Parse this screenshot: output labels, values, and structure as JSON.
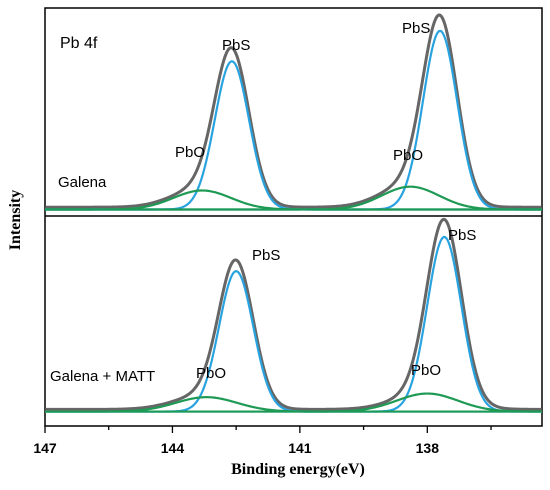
{
  "chart_data": {
    "type": "line",
    "xlabel": "Binding energy(eV)",
    "ylabel": "Intensity",
    "xlim": [
      147,
      135.3
    ],
    "x_reversed": true,
    "x_ticks": [
      147,
      144,
      141,
      138
    ],
    "grid": false,
    "colors": {
      "envelope": "#555555",
      "pbs_fit": "#29a3e0",
      "pbo_fit": "#1f9a55"
    },
    "panels": [
      {
        "id": "top",
        "corner_label": "Pb 4f",
        "sample_label": "Galena",
        "peaks": [
          {
            "label": "PbS",
            "component": "PbS",
            "center": 142.6,
            "height": 0.78,
            "fwhm": 0.95
          },
          {
            "label": "PbS",
            "component": "PbS",
            "center": 137.7,
            "height": 0.94,
            "fwhm": 0.95
          },
          {
            "label": "PbO",
            "component": "PbO",
            "center": 143.3,
            "height": 0.1,
            "fwhm": 1.6
          },
          {
            "label": "PbO",
            "component": "PbO",
            "center": 138.4,
            "height": 0.12,
            "fwhm": 1.6
          }
        ]
      },
      {
        "id": "bottom",
        "sample_label": "Galena + MATT",
        "peaks": [
          {
            "label": "PbS",
            "component": "PbS",
            "center": 142.5,
            "height": 0.78,
            "fwhm": 0.95
          },
          {
            "label": "PbS",
            "component": "PbS",
            "center": 137.6,
            "height": 0.97,
            "fwhm": 0.95
          },
          {
            "label": "PbO",
            "component": "PbO",
            "center": 143.2,
            "height": 0.08,
            "fwhm": 1.7
          },
          {
            "label": "PbO",
            "component": "PbO",
            "center": 138.0,
            "height": 0.1,
            "fwhm": 1.7
          }
        ]
      }
    ]
  }
}
